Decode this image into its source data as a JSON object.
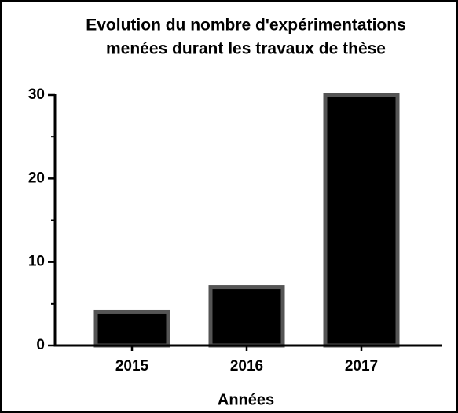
{
  "chart_data": {
    "type": "bar",
    "title": [
      "Evolution du nombre d'expérimentations",
      "menées durant les travaux de thèse"
    ],
    "x_label": "Années",
    "categories": [
      "2015",
      "2016",
      "2017"
    ],
    "values": [
      4,
      7,
      30
    ],
    "color": "#000000",
    "edge_color": "#555555",
    "ylim": [
      0,
      30
    ],
    "yticks": [
      0,
      10,
      20,
      30
    ],
    "minor_yticks": [
      5,
      15,
      25
    ],
    "grid": false
  }
}
